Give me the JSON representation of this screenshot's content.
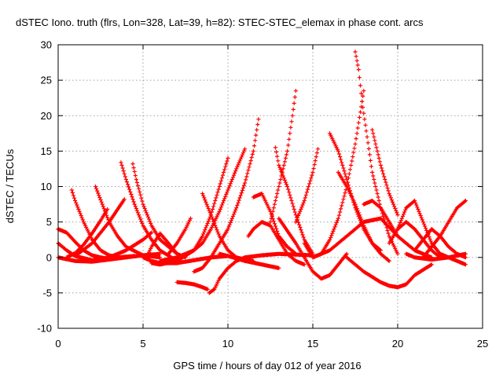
{
  "chart_data": {
    "type": "scatter",
    "title": "dSTEC Iono. truth (flrs, Lon=328, Lat=39, h=82): STEC-STEC_elemax in phase cont. arcs",
    "xlabel": "GPS time / hours of day 012 of year 2016",
    "ylabel": "dSTEC  / TECUs",
    "xlim": [
      0,
      25
    ],
    "ylim": [
      -10,
      30
    ],
    "xticks": [
      0,
      5,
      10,
      15,
      20,
      25
    ],
    "yticks": [
      -10,
      -5,
      0,
      5,
      10,
      15,
      20,
      25,
      30
    ],
    "grid": true,
    "marker": "+",
    "color": "#ff0000",
    "series": [
      {
        "x": [
          0.0,
          0.5,
          1.0,
          1.5,
          2.0,
          2.5,
          3.0
        ],
        "y": [
          4.0,
          3.5,
          2.2,
          1.0,
          0.3,
          0.0,
          -0.2
        ]
      },
      {
        "x": [
          0.0,
          0.5,
          1.0,
          2.0,
          3.0,
          4.0,
          5.0,
          5.5
        ],
        "y": [
          2.0,
          1.0,
          0.2,
          -0.4,
          0.0,
          1.0,
          2.5,
          3.5
        ]
      },
      {
        "x": [
          0.0,
          1.0,
          2.0,
          3.0,
          4.0,
          5.0,
          6.0
        ],
        "y": [
          0.0,
          -0.5,
          -0.6,
          -0.3,
          0.0,
          0.3,
          0.5
        ]
      },
      {
        "x": [
          0.8,
          1.0,
          1.5,
          2.0,
          2.5,
          3.0,
          3.5,
          4.5
        ],
        "y": [
          9.5,
          8.0,
          5.0,
          2.5,
          1.0,
          0.3,
          0.0,
          0.2
        ]
      },
      {
        "x": [
          2.2,
          2.6,
          3.0,
          3.5,
          4.0,
          5.0,
          6.0
        ],
        "y": [
          10.0,
          7.5,
          5.0,
          3.0,
          1.5,
          0.3,
          0.0
        ]
      },
      {
        "x": [
          0.5,
          1.0,
          1.5,
          2.0,
          2.5,
          2.9
        ],
        "y": [
          0.0,
          0.6,
          1.8,
          3.4,
          5.2,
          6.8
        ]
      },
      {
        "x": [
          1.0,
          2.0,
          3.0,
          3.9
        ],
        "y": [
          0.2,
          2.0,
          5.0,
          8.2
        ]
      },
      {
        "x": [
          3.7,
          4.0,
          4.5,
          5.0,
          5.5,
          6.0,
          7.0
        ],
        "y": [
          13.4,
          11.0,
          7.5,
          4.5,
          2.5,
          1.0,
          -0.5
        ]
      },
      {
        "x": [
          4.4,
          4.6,
          5.0,
          5.5,
          6.0,
          7.0
        ],
        "y": [
          13.2,
          11.0,
          7.5,
          4.5,
          2.5,
          0.5
        ]
      },
      {
        "x": [
          5.0,
          5.5,
          6.0,
          7.0,
          8.0,
          9.0,
          10.0
        ],
        "y": [
          0.0,
          -0.5,
          -0.8,
          -0.8,
          -0.4,
          0.0,
          0.2
        ]
      },
      {
        "x": [
          5.2,
          5.5,
          6.0,
          6.5,
          7.0,
          7.5
        ],
        "y": [
          0.0,
          1.5,
          3.4,
          2.0,
          0.5,
          0.0
        ]
      },
      {
        "x": [
          5.5,
          6.0,
          7.0,
          8.0,
          8.5,
          9.0,
          9.5,
          10.0
        ],
        "y": [
          -0.8,
          -1.0,
          -0.5,
          1.0,
          3.0,
          6.0,
          10.0,
          14.0
        ]
      },
      {
        "x": [
          6.0,
          7.0,
          8.0,
          8.5,
          9.0,
          9.5,
          10.0,
          10.5,
          11.0
        ],
        "y": [
          -0.5,
          0.0,
          1.0,
          2.0,
          4.0,
          6.5,
          9.5,
          12.5,
          15.3
        ]
      },
      {
        "x": [
          6.5,
          7.0,
          7.5,
          7.8
        ],
        "y": [
          0.5,
          2.0,
          4.0,
          5.5
        ]
      },
      {
        "x": [
          7.0,
          7.5,
          8.0,
          8.5,
          8.8
        ],
        "y": [
          -3.5,
          -3.6,
          -3.8,
          -4.2,
          -4.5
        ]
      },
      {
        "x": [
          8.0,
          8.5,
          9.0,
          9.5,
          10.0,
          10.5,
          11.0,
          11.5,
          11.8
        ],
        "y": [
          -2.0,
          -1.5,
          0.0,
          2.0,
          4.0,
          7.0,
          10.5,
          15.0,
          19.5
        ]
      },
      {
        "x": [
          8.5,
          9.0,
          9.5,
          10.0,
          10.5,
          11.0,
          11.5
        ],
        "y": [
          9.0,
          6.0,
          3.0,
          1.0,
          0.0,
          -0.3,
          -0.5
        ]
      },
      {
        "x": [
          8.9,
          9.2,
          9.5,
          10.0,
          10.5,
          11.0,
          12.0,
          13.0,
          14.0,
          15.0
        ],
        "y": [
          -5.0,
          -4.5,
          -3.0,
          -1.5,
          -0.5,
          0.0,
          0.3,
          0.5,
          0.4,
          0.3
        ]
      },
      {
        "x": [
          9.5,
          10.0,
          11.0,
          12.0,
          13.0
        ],
        "y": [
          0.5,
          0.2,
          -0.5,
          -1.0,
          -1.5
        ]
      },
      {
        "x": [
          11.5,
          12.0,
          12.5,
          13.0,
          13.5,
          14.0
        ],
        "y": [
          8.5,
          9.0,
          6.5,
          3.0,
          1.5,
          0.5
        ]
      },
      {
        "x": [
          11.2,
          11.5,
          12.0,
          12.5,
          13.0,
          13.5,
          14.0,
          14.5
        ],
        "y": [
          3.0,
          4.0,
          5.0,
          4.5,
          2.5,
          0.5,
          -0.5,
          -1.0
        ]
      },
      {
        "x": [
          12.5,
          13.0,
          13.5,
          13.8,
          14.0
        ],
        "y": [
          5.0,
          10.0,
          15.0,
          20.0,
          23.5
        ]
      },
      {
        "x": [
          12.8,
          13.0,
          13.5,
          14.0,
          14.5,
          15.0
        ],
        "y": [
          15.5,
          13.0,
          10.0,
          6.0,
          2.5,
          0.5
        ]
      },
      {
        "x": [
          13.0,
          14.0,
          15.0,
          15.5,
          16.0,
          16.5,
          17.0
        ],
        "y": [
          5.5,
          2.0,
          -2.0,
          -3.0,
          -2.5,
          -1.0,
          0.5
        ]
      },
      {
        "x": [
          14.0,
          14.5,
          15.0,
          15.3
        ],
        "y": [
          5.0,
          8.0,
          12.0,
          15.3
        ]
      },
      {
        "x": [
          14.5,
          15.0,
          15.5,
          16.0,
          16.5,
          17.0,
          17.5,
          18.0
        ],
        "y": [
          2.0,
          0.0,
          0.5,
          2.5,
          5.5,
          10.0,
          16.0,
          23.5
        ]
      },
      {
        "x": [
          16.0,
          16.5,
          17.0,
          17.5,
          18.0,
          18.5,
          19.0
        ],
        "y": [
          17.5,
          15.0,
          11.0,
          7.0,
          4.0,
          2.0,
          1.0
        ]
      },
      {
        "x": [
          16.5,
          17.0,
          17.5,
          18.0,
          18.5,
          19.0,
          19.5
        ],
        "y": [
          12.0,
          10.0,
          7.5,
          4.5,
          2.0,
          0.5,
          -0.5
        ]
      },
      {
        "x": [
          17.5,
          17.7,
          17.9,
          18.2,
          18.5,
          19.0,
          19.5,
          20.0
        ],
        "y": [
          29.0,
          26.5,
          22.0,
          17.0,
          12.0,
          7.0,
          3.0,
          0.5
        ]
      },
      {
        "x": [
          18.5,
          19.0,
          19.5,
          20.0
        ],
        "y": [
          18.0,
          13.0,
          9.0,
          6.0
        ]
      },
      {
        "x": [
          15.0,
          16.0,
          17.0,
          18.0,
          19.0,
          20.0,
          21.0,
          22.0
        ],
        "y": [
          0.0,
          1.0,
          3.0,
          5.0,
          5.5,
          3.0,
          1.0,
          0.0
        ]
      },
      {
        "x": [
          17.0,
          18.0,
          19.0,
          19.5,
          20.0,
          20.5,
          21.0,
          22.0
        ],
        "y": [
          0.0,
          -2.0,
          -3.5,
          -4.0,
          -4.2,
          -3.8,
          -2.5,
          -1.0
        ]
      },
      {
        "x": [
          18.0,
          18.5,
          19.0,
          19.5,
          20.0
        ],
        "y": [
          7.5,
          8.0,
          7.0,
          5.0,
          3.0
        ]
      },
      {
        "x": [
          19.5,
          20.0,
          20.5,
          21.0,
          21.5,
          22.0,
          22.5
        ],
        "y": [
          2.0,
          4.0,
          5.0,
          4.0,
          2.5,
          1.0,
          0.0
        ]
      },
      {
        "x": [
          20.0,
          20.5,
          21.0,
          21.5,
          22.0,
          22.5,
          23.0,
          23.5,
          24.0
        ],
        "y": [
          4.0,
          7.0,
          8.0,
          5.0,
          2.0,
          0.5,
          0.0,
          -0.5,
          -1.0
        ]
      },
      {
        "x": [
          21.0,
          21.5,
          22.0,
          22.5,
          23.0,
          23.5,
          24.0
        ],
        "y": [
          1.0,
          2.5,
          4.0,
          3.0,
          1.5,
          0.5,
          0.0
        ]
      },
      {
        "x": [
          21.5,
          22.0,
          22.5,
          23.0,
          23.5,
          24.0
        ],
        "y": [
          0.0,
          1.5,
          3.0,
          5.0,
          7.0,
          8.0
        ]
      },
      {
        "x": [
          20.5,
          21.0,
          22.0,
          23.0,
          24.0
        ],
        "y": [
          0.5,
          0.0,
          -0.3,
          0.0,
          0.5
        ]
      }
    ]
  }
}
